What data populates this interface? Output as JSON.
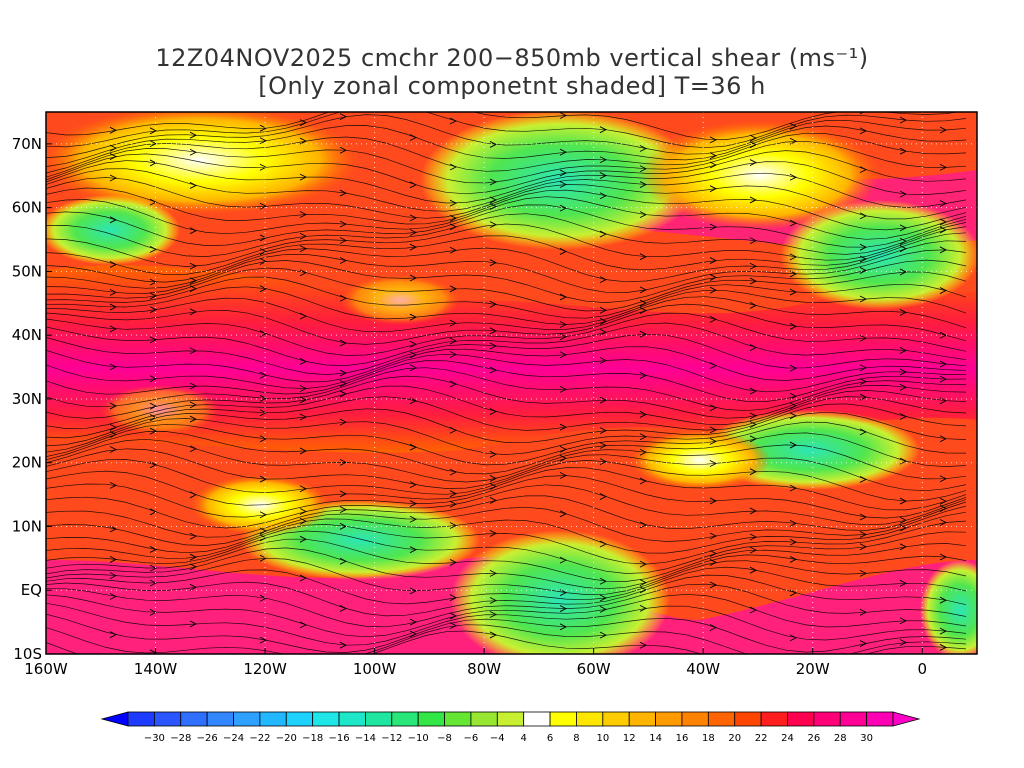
{
  "title": {
    "line1": "12Z04NOV2025 cmchr 200−850mb vertical shear (ms⁻¹)",
    "line2": "[Only zonal componetnt shaded] T=36 h"
  },
  "map": {
    "lat_labels": [
      "70N",
      "60N",
      "50N",
      "40N",
      "30N",
      "20N",
      "10N",
      "EQ",
      "10S"
    ],
    "lat_values": [
      70,
      60,
      50,
      40,
      30,
      20,
      10,
      0,
      -10
    ],
    "lon_labels": [
      "160W",
      "140W",
      "120W",
      "100W",
      "80W",
      "60W",
      "40W",
      "20W",
      "0"
    ],
    "lon_values": [
      -160,
      -140,
      -120,
      -100,
      -80,
      -60,
      -40,
      -20,
      0
    ],
    "extent": {
      "lon_min": -160,
      "lon_max": 10,
      "lat_min": -10,
      "lat_max": 75
    }
  },
  "colorbar": {
    "labels": [
      "−30",
      "−28",
      "−26",
      "−24",
      "−22",
      "−20",
      "−18",
      "−16",
      "−14",
      "−12",
      "−10",
      "−8",
      "−6",
      "−4",
      "4",
      "6",
      "8",
      "10",
      "12",
      "14",
      "16",
      "18",
      "20",
      "22",
      "24",
      "26",
      "28",
      "30"
    ],
    "colors": [
      "#1e3cff",
      "#2a55ff",
      "#2f6eff",
      "#3286ff",
      "#2ea0ff",
      "#22b8ff",
      "#1ed2ff",
      "#1ee6e6",
      "#1ee6c8",
      "#1ee6a0",
      "#28e678",
      "#32e646",
      "#64e632",
      "#96e632",
      "#c8f032",
      "#ffffff",
      "#ffff00",
      "#ffe600",
      "#ffcc00",
      "#ffb400",
      "#ff9b00",
      "#ff8200",
      "#ff6400",
      "#ff4600",
      "#ff1e1e",
      "#ff0050",
      "#ff0078",
      "#ff0096",
      "#ff00b4"
    ],
    "left_cap": "#0000ff",
    "right_cap": "#ff00c8"
  }
}
